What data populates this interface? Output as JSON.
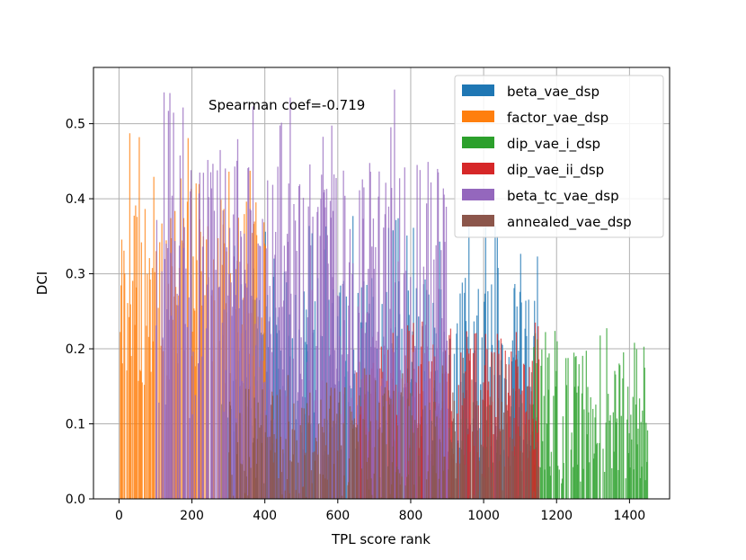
{
  "chart_data": {
    "type": "bar",
    "title": "",
    "xlabel": "TPL score rank",
    "ylabel": "DCI",
    "xlim": [
      -70,
      1510
    ],
    "ylim": [
      0,
      0.575
    ],
    "xticks": [
      0,
      200,
      400,
      600,
      800,
      1000,
      1200,
      1400
    ],
    "xtick_labels": [
      "0",
      "200",
      "400",
      "600",
      "800",
      "1000",
      "1200",
      "1400"
    ],
    "yticks": [
      0.0,
      0.1,
      0.2,
      0.3,
      0.4,
      0.5
    ],
    "ytick_labels": [
      "0.0",
      "0.1",
      "0.2",
      "0.3",
      "0.4",
      "0.5"
    ],
    "grid": true,
    "legend_position": "top-right",
    "annotation": "Spearman coef=-0.719",
    "series": [
      {
        "name": "beta_vae_dsp",
        "color": "#1f77b4",
        "rank_range": [
          280,
          1150
        ],
        "typical_dci": [
          0.05,
          0.3
        ],
        "peak_dci": 0.38
      },
      {
        "name": "factor_vae_dsp",
        "color": "#ff7f0e",
        "rank_range": [
          0,
          400
        ],
        "typical_dci": [
          0.15,
          0.4
        ],
        "peak_dci": 0.51
      },
      {
        "name": "dip_vae_i_dsp",
        "color": "#2ca02c",
        "rank_range": [
          1130,
          1450
        ],
        "typical_dci": [
          0.02,
          0.2
        ],
        "peak_dci": 0.23
      },
      {
        "name": "dip_vae_ii_dsp",
        "color": "#d62728",
        "rank_range": [
          650,
          1150
        ],
        "typical_dci": [
          0.05,
          0.2
        ],
        "peak_dci": 0.24
      },
      {
        "name": "beta_tc_vae_dsp",
        "color": "#9467bd",
        "rank_range": [
          100,
          900
        ],
        "typical_dci": [
          0.1,
          0.45
        ],
        "peak_dci": 0.55
      },
      {
        "name": "annealed_vae_dsp",
        "color": "#8c564b",
        "rank_range": [
          300,
          1150
        ],
        "typical_dci": [
          0.0,
          0.15
        ],
        "peak_dci": 0.2
      }
    ]
  }
}
